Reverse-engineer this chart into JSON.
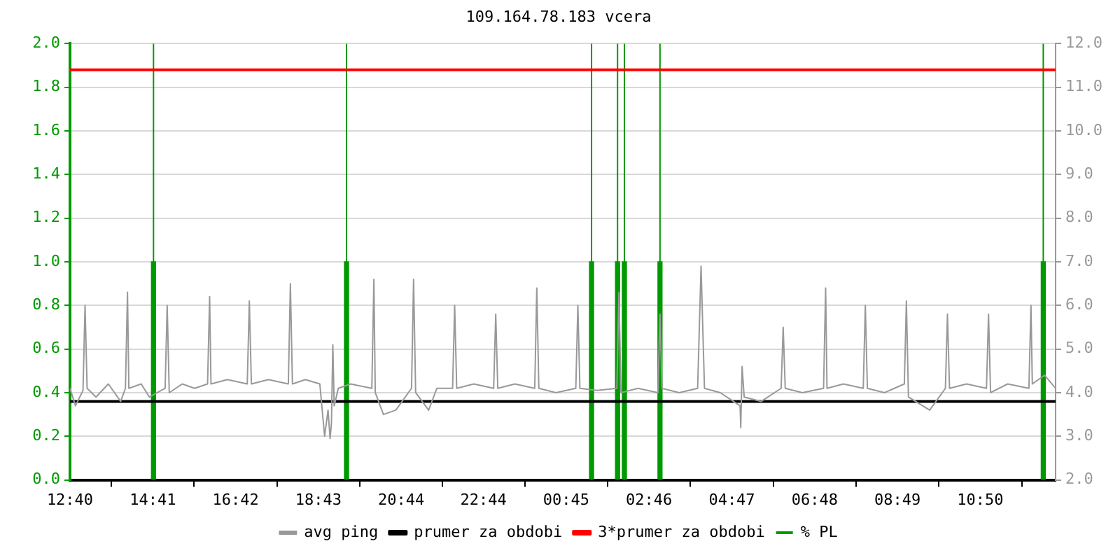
{
  "chart_data": {
    "type": "line",
    "title": "109.164.78.183 vcera",
    "xlim": [
      "--01-01T12:40",
      "--01-02T12:40"
    ],
    "xticks": [
      {
        "value": "--01-01T12:40",
        "label": "12:40"
      },
      {
        "value": "--01-01T14:41",
        "label": "14:41"
      },
      {
        "value": "--01-01T16:42",
        "label": "16:42"
      },
      {
        "value": "--01-01T18:43",
        "label": "18:43"
      },
      {
        "value": "--01-01T20:44",
        "label": "20:44"
      },
      {
        "value": "--01-01T22:44",
        "label": "22:44"
      },
      {
        "value": "--01-02T00:45",
        "label": "00:45"
      },
      {
        "value": "--01-02T02:46",
        "label": "02:46"
      },
      {
        "value": "--01-02T04:47",
        "label": "04:47"
      },
      {
        "value": "--01-02T06:48",
        "label": "06:48"
      },
      {
        "value": "--01-02T08:49",
        "label": "08:49"
      },
      {
        "value": "--01-02T10:50",
        "label": "10:50"
      }
    ],
    "ylim": [
      0,
      2
    ],
    "yticks": [
      {
        "value": 0,
        "label": "0.0"
      },
      {
        "value": 0.2,
        "label": "0.2"
      },
      {
        "value": 0.4,
        "label": "0.4"
      },
      {
        "value": 0.6,
        "label": "0.6"
      },
      {
        "value": 0.8,
        "label": "0.8"
      },
      {
        "value": 1,
        "label": "1.0"
      },
      {
        "value": 1.2,
        "label": "1.2"
      },
      {
        "value": 1.4,
        "label": "1.4"
      },
      {
        "value": 1.6,
        "label": "1.6"
      },
      {
        "value": 1.8,
        "label": "1.8"
      },
      {
        "value": 2,
        "label": "2.0"
      }
    ],
    "y2lim": [
      2,
      12
    ],
    "y2ticks": [
      {
        "value": 2,
        "label": "2.0"
      },
      {
        "value": 3,
        "label": "3.0"
      },
      {
        "value": 4,
        "label": "4.0"
      },
      {
        "value": 5,
        "label": "5.0"
      },
      {
        "value": 6,
        "label": "6.0"
      },
      {
        "value": 7,
        "label": "7.0"
      },
      {
        "value": 8,
        "label": "8.0"
      },
      {
        "value": 9,
        "label": "9.0"
      },
      {
        "value": 10,
        "label": "10.0"
      },
      {
        "value": 11,
        "label": "11.0"
      },
      {
        "value": 12,
        "label": "12.0"
      }
    ],
    "grid": "y",
    "legend": "bottom",
    "marker": "none",
    "line_style": "solid",
    "ref_lines": [
      {
        "axis": "x",
        "value": "--01-01T14:42",
        "color": "#009900"
      },
      {
        "axis": "x",
        "value": "--01-01T19:24",
        "color": "#009900"
      },
      {
        "axis": "x",
        "value": "--01-02T01:22",
        "color": "#009900"
      },
      {
        "axis": "x",
        "value": "--01-02T02:00",
        "color": "#009900"
      },
      {
        "axis": "x",
        "value": "--01-02T02:10",
        "color": "#009900"
      },
      {
        "axis": "x",
        "value": "--01-02T03:02",
        "color": "#009900"
      },
      {
        "axis": "x",
        "value": "--01-02T12:22",
        "color": "#009900"
      }
    ],
    "series": [
      {
        "name": "% PL",
        "type": "bar",
        "color": "#009900",
        "x": [
          "--01-01T14:42",
          "--01-01T19:24",
          "--01-02T01:22",
          "--01-02T02:00",
          "--01-02T02:10",
          "--01-02T03:02",
          "--01-02T12:22"
        ],
        "values": [
          1,
          1,
          1,
          1,
          1,
          1,
          1
        ]
      },
      {
        "name": "avg ping",
        "type": "line",
        "axis": "y2",
        "color": "#999999",
        "x": [
          "--01-01T12:40",
          "--01-01T12:48",
          "--01-01T12:59",
          "--01-01T13:02",
          "--01-01T13:05",
          "--01-01T13:18",
          "--01-01T13:36",
          "--01-01T13:54",
          "--01-01T14:01",
          "--01-01T14:04",
          "--01-01T14:06",
          "--01-01T14:24",
          "--01-01T14:36",
          "--01-01T14:59",
          "--01-01T15:02",
          "--01-01T15:05",
          "--01-01T15:24",
          "--01-01T15:42",
          "--01-01T16:01",
          "--01-01T16:04",
          "--01-01T16:06",
          "--01-01T16:30",
          "--01-01T16:59",
          "--01-01T17:02",
          "--01-01T17:05",
          "--01-01T17:30",
          "--01-01T17:59",
          "--01-01T18:02",
          "--01-01T18:05",
          "--01-01T18:24",
          "--01-01T18:45",
          "--01-01T18:52",
          "--01-01T18:57",
          "--01-01T19:00",
          "--01-01T19:02",
          "--01-01T19:04",
          "--01-01T19:06",
          "--01-01T19:12",
          "--01-01T19:30",
          "--01-01T20:01",
          "--01-01T20:04",
          "--01-01T20:06",
          "--01-01T20:18",
          "--01-01T20:36",
          "--01-01T20:59",
          "--01-01T21:02",
          "--01-01T21:05",
          "--01-01T21:24",
          "--01-01T21:36",
          "--01-01T21:59",
          "--01-01T22:02",
          "--01-01T22:05",
          "--01-01T22:30",
          "--01-01T22:59",
          "--01-01T23:02",
          "--01-01T23:05",
          "--01-01T23:30",
          "--01-01T23:59",
          "--01-02T00:02",
          "--01-02T00:05",
          "--01-02T00:30",
          "--01-02T00:59",
          "--01-02T01:02",
          "--01-02T01:05",
          "--01-02T01:30",
          "--01-02T01:59",
          "--01-02T02:02",
          "--01-02T02:05",
          "--01-02T02:30",
          "--01-02T02:59",
          "--01-02T03:02",
          "--01-02T03:05",
          "--01-02T03:30",
          "--01-02T03:57",
          "--01-02T04:02",
          "--01-02T04:07",
          "--01-02T04:30",
          "--01-02T04:59",
          "--01-02T05:00",
          "--01-02T05:02",
          "--01-02T05:05",
          "--01-02T05:30",
          "--01-02T05:59",
          "--01-02T06:02",
          "--01-02T06:05",
          "--01-02T06:30",
          "--01-02T07:01",
          "--01-02T07:04",
          "--01-02T07:06",
          "--01-02T07:30",
          "--01-02T07:59",
          "--01-02T08:02",
          "--01-02T08:05",
          "--01-02T08:30",
          "--01-02T08:59",
          "--01-02T09:02",
          "--01-02T09:05",
          "--01-02T09:36",
          "--01-02T09:59",
          "--01-02T10:02",
          "--01-02T10:05",
          "--01-02T10:30",
          "--01-02T10:59",
          "--01-02T11:02",
          "--01-02T11:05",
          "--01-02T11:30",
          "--01-02T12:01",
          "--01-02T12:04",
          "--01-02T12:06",
          "--01-02T12:24",
          "--01-02T12:40"
        ],
        "values": [
          4.1,
          3.7,
          4.05,
          6.0,
          4.1,
          3.9,
          4.2,
          3.8,
          4.1,
          6.3,
          4.1,
          4.2,
          3.9,
          4.1,
          6.0,
          4.0,
          4.2,
          4.1,
          4.2,
          6.2,
          4.2,
          4.3,
          4.2,
          6.1,
          4.2,
          4.3,
          4.2,
          6.5,
          4.2,
          4.3,
          4.2,
          3.0,
          3.6,
          2.95,
          3.3,
          5.1,
          3.7,
          4.1,
          4.2,
          4.1,
          6.6,
          4.0,
          3.5,
          3.6,
          4.1,
          6.6,
          4.0,
          3.6,
          4.1,
          4.1,
          6.0,
          4.1,
          4.2,
          4.1,
          5.8,
          4.1,
          4.2,
          4.1,
          6.4,
          4.1,
          4.0,
          4.1,
          6.0,
          4.1,
          4.05,
          4.1,
          6.3,
          4.0,
          4.1,
          4.0,
          5.8,
          4.1,
          4.0,
          4.1,
          6.9,
          4.1,
          4.0,
          3.7,
          3.2,
          4.6,
          3.9,
          3.8,
          4.1,
          5.5,
          4.1,
          4.0,
          4.1,
          6.4,
          4.1,
          4.2,
          4.1,
          6.0,
          4.1,
          4.0,
          4.2,
          6.1,
          3.9,
          3.6,
          4.1,
          5.8,
          4.1,
          4.2,
          4.1,
          5.8,
          4.0,
          4.2,
          4.1,
          6.0,
          4.2,
          4.4,
          4.1
        ]
      },
      {
        "name": "prumer za obdobi",
        "axis": "y2",
        "color": "#000000",
        "x": [
          "--01-01T12:40",
          "--01-02T12:40"
        ],
        "values": [
          3.8,
          3.8
        ]
      },
      {
        "name": "3*prumer za obdobi",
        "axis": "y2",
        "color": "#ff0000",
        "x": [
          "--01-01T12:40",
          "--01-02T12:40"
        ],
        "values": [
          11.4,
          11.4
        ]
      }
    ]
  }
}
